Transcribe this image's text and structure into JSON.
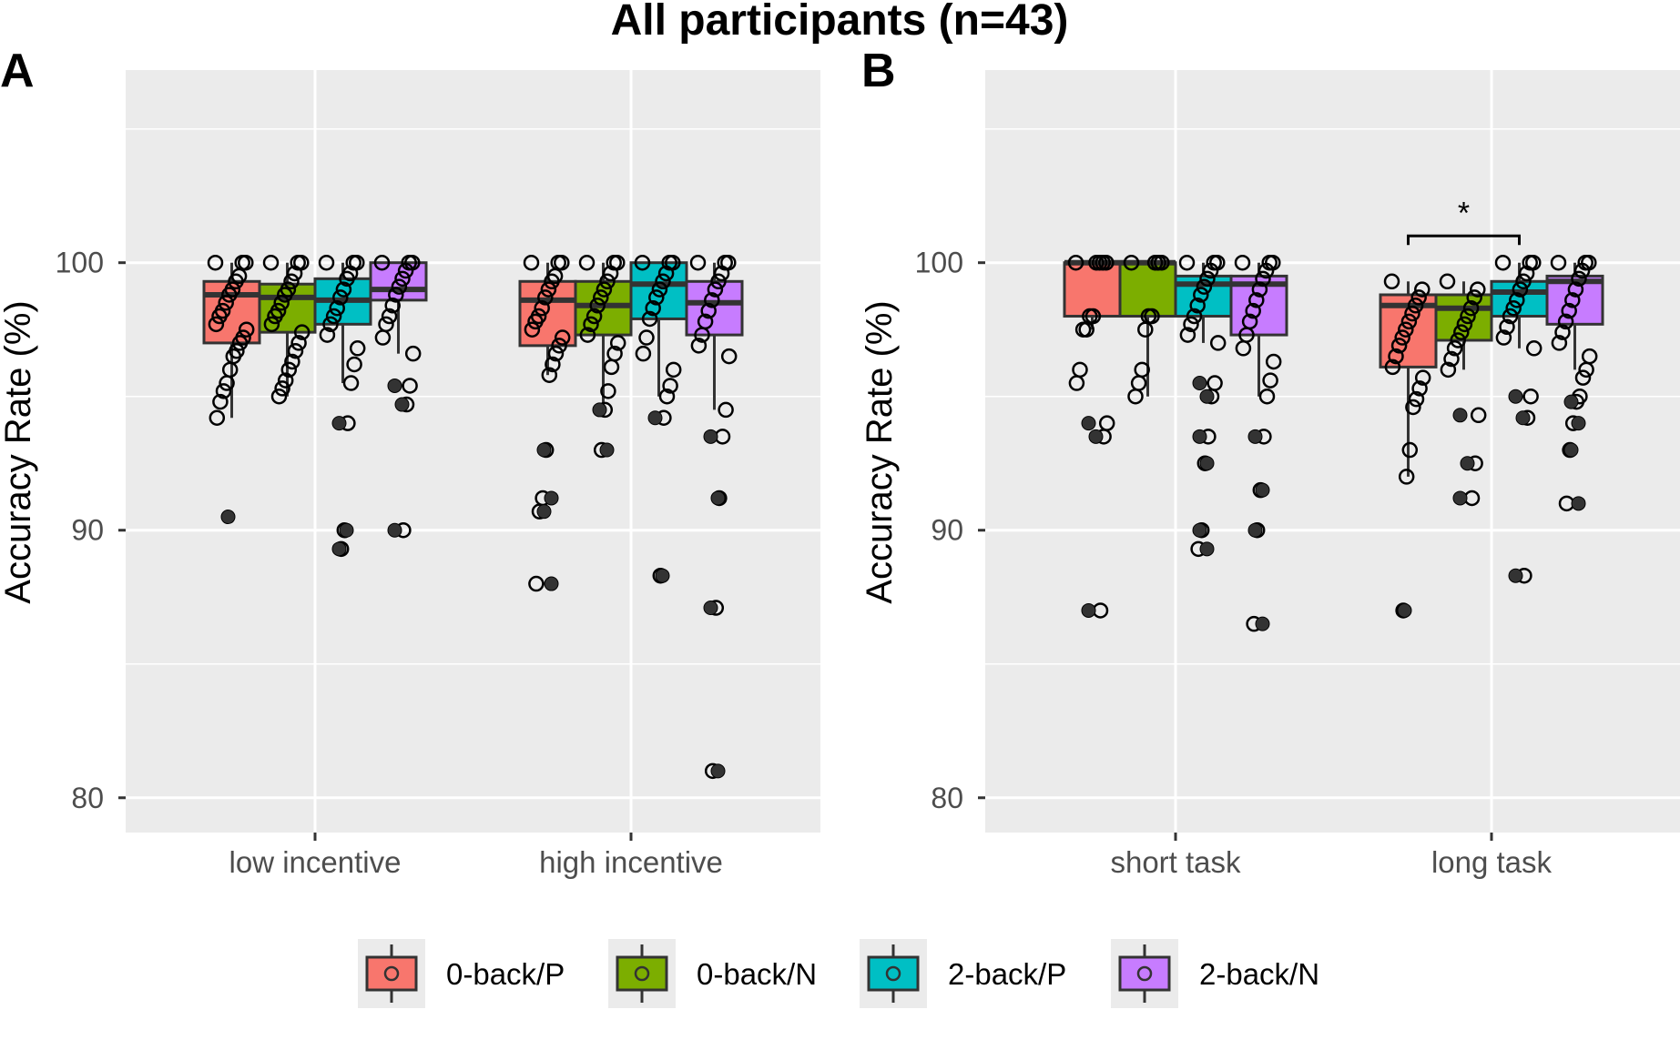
{
  "title": "All participants (n=43)",
  "colors": {
    "0-back/P": "#F8766D",
    "0-back/N": "#7CAE00",
    "2-back/P": "#00BFC4",
    "2-back/N": "#C77CFF",
    "panel_bg": "#EBEBEB",
    "grid": "#FFFFFF"
  },
  "legend": {
    "items": [
      "0-back/P",
      "0-back/N",
      "2-back/P",
      "2-back/N"
    ]
  },
  "chart_data": [
    {
      "type": "box",
      "panel": "A",
      "title": "",
      "xlabel": "",
      "ylabel": "Accuracy Rate (%)",
      "ylim": [
        78.7,
        107.2
      ],
      "y_ticks": [
        80,
        90,
        100
      ],
      "categories": [
        "low incentive",
        "high incentive"
      ],
      "series": [
        {
          "name": "0-back/P",
          "boxes": [
            {
              "q1": 97.0,
              "median": 98.8,
              "q3": 99.3,
              "lower": 94.2,
              "upper": 100,
              "filled": [
                90.5
              ],
              "points": [
                100,
                100,
                100,
                99.5,
                99.3,
                99.0,
                98.8,
                98.5,
                98.2,
                98.0,
                97.7,
                97.5,
                97.2,
                97.0,
                96.7,
                96.5,
                96.0,
                95.5,
                95.2,
                94.8,
                94.2
              ]
            },
            {
              "q1": 96.9,
              "median": 98.6,
              "q3": 99.3,
              "lower": 95.8,
              "upper": 100,
              "filled": [
                93.0,
                91.2,
                90.7,
                88.0
              ],
              "points": [
                100,
                100,
                100,
                99.5,
                99.3,
                99.0,
                98.7,
                98.3,
                98.0,
                97.8,
                97.5,
                97.2,
                96.9,
                96.6,
                96.2,
                95.8,
                93.0,
                91.2,
                90.7,
                88.0
              ]
            }
          ]
        },
        {
          "name": "0-back/N",
          "boxes": [
            {
              "q1": 97.4,
              "median": 98.7,
              "q3": 99.2,
              "lower": 95.0,
              "upper": 100,
              "filled": [],
              "points": [
                100,
                100,
                100,
                99.6,
                99.3,
                99.0,
                98.8,
                98.5,
                98.2,
                98.0,
                97.7,
                97.4,
                97.0,
                96.7,
                96.3,
                96.0,
                95.6,
                95.3,
                95.0
              ]
            },
            {
              "q1": 97.3,
              "median": 98.4,
              "q3": 99.3,
              "lower": 94.5,
              "upper": 100,
              "filled": [
                94.5,
                93.0
              ],
              "points": [
                100,
                100,
                100,
                99.6,
                99.3,
                99.0,
                98.7,
                98.4,
                98.0,
                97.7,
                97.3,
                97.0,
                96.6,
                96.1,
                95.2,
                94.5,
                93.0
              ]
            }
          ]
        },
        {
          "name": "2-back/P",
          "boxes": [
            {
              "q1": 97.7,
              "median": 98.6,
              "q3": 99.4,
              "lower": 95.5,
              "upper": 100,
              "filled": [
                94.0,
                90.0,
                89.3
              ],
              "points": [
                100,
                100,
                100,
                99.6,
                99.4,
                99.0,
                98.7,
                98.3,
                98.0,
                97.7,
                97.3,
                96.8,
                96.2,
                95.5,
                94.0,
                90.0,
                89.3
              ]
            },
            {
              "q1": 97.9,
              "median": 99.2,
              "q3": 100,
              "lower": 95.0,
              "upper": 100,
              "filled": [
                94.2,
                88.3
              ],
              "points": [
                100,
                100,
                100,
                99.6,
                99.3,
                99.0,
                98.7,
                98.3,
                97.9,
                97.2,
                96.6,
                96.0,
                95.4,
                95.0,
                94.2,
                88.3
              ]
            }
          ]
        },
        {
          "name": "2-back/N",
          "boxes": [
            {
              "q1": 98.6,
              "median": 99.0,
              "q3": 100,
              "lower": 96.6,
              "upper": 100,
              "filled": [
                95.4,
                94.7,
                90.0
              ],
              "points": [
                100,
                100,
                100,
                99.7,
                99.4,
                99.1,
                98.8,
                98.4,
                98.0,
                97.7,
                97.2,
                96.6,
                95.4,
                94.7,
                90.0
              ]
            },
            {
              "q1": 97.3,
              "median": 98.5,
              "q3": 99.3,
              "lower": 94.5,
              "upper": 100,
              "filled": [
                93.5,
                91.2,
                87.1,
                81.0
              ],
              "points": [
                100,
                100,
                100,
                99.6,
                99.3,
                99.0,
                98.6,
                98.2,
                97.8,
                97.3,
                96.9,
                96.5,
                94.5,
                93.5,
                91.2,
                87.1,
                81.0
              ]
            }
          ]
        }
      ],
      "annotations": []
    },
    {
      "type": "box",
      "panel": "B",
      "title": "",
      "xlabel": "",
      "ylabel": "Accuracy Rate (%)",
      "ylim": [
        78.7,
        107.2
      ],
      "y_ticks": [
        80,
        90,
        100
      ],
      "categories": [
        "short task",
        "long task"
      ],
      "series": [
        {
          "name": "0-back/P",
          "boxes": [
            {
              "q1": 98.0,
              "median": 100,
              "q3": 100,
              "lower": 97.5,
              "upper": 100,
              "filled": [
                94.0,
                93.5,
                87.0
              ],
              "points": [
                100,
                100,
                100,
                100,
                100,
                98.0,
                98.0,
                97.5,
                97.5,
                96.0,
                95.5,
                94.0,
                93.5,
                87.0
              ]
            },
            {
              "q1": 96.1,
              "median": 98.4,
              "q3": 98.8,
              "lower": 92.0,
              "upper": 99.3,
              "filled": [
                87.0
              ],
              "points": [
                99.3,
                99.0,
                98.7,
                98.4,
                98.1,
                97.8,
                97.5,
                97.2,
                96.9,
                96.5,
                96.1,
                95.7,
                95.3,
                94.9,
                94.6,
                93.0,
                92.0,
                87.0
              ]
            }
          ]
        },
        {
          "name": "0-back/N",
          "boxes": [
            {
              "q1": 98.0,
              "median": 100,
              "q3": 100,
              "lower": 95.0,
              "upper": 100,
              "filled": [],
              "points": [
                100,
                100,
                100,
                100,
                98.0,
                98.0,
                97.5,
                96.0,
                95.5,
                95.0
              ]
            },
            {
              "q1": 97.1,
              "median": 98.3,
              "q3": 98.8,
              "lower": 96.0,
              "upper": 99.3,
              "filled": [
                94.3,
                92.5,
                91.2
              ],
              "points": [
                99.3,
                99.0,
                98.7,
                98.3,
                98.0,
                97.7,
                97.4,
                97.1,
                96.8,
                96.4,
                96.0,
                94.3,
                92.5,
                91.2
              ]
            }
          ]
        },
        {
          "name": "2-back/P",
          "boxes": [
            {
              "q1": 98.0,
              "median": 99.2,
              "q3": 99.5,
              "lower": 97.0,
              "upper": 100,
              "filled": [
                95.5,
                95.0,
                93.5,
                92.5,
                90.0,
                89.3
              ],
              "points": [
                100,
                100,
                100,
                99.7,
                99.4,
                99.1,
                98.8,
                98.4,
                98.0,
                97.7,
                97.3,
                97.0,
                95.5,
                95.0,
                93.5,
                92.5,
                90.0,
                89.3
              ]
            },
            {
              "q1": 98.0,
              "median": 98.9,
              "q3": 99.3,
              "lower": 96.8,
              "upper": 100,
              "filled": [
                95.0,
                94.2,
                88.3
              ],
              "points": [
                100,
                100,
                100,
                99.6,
                99.3,
                99.0,
                98.6,
                98.3,
                98.0,
                97.6,
                97.2,
                96.8,
                95.0,
                94.2,
                88.3
              ]
            }
          ]
        },
        {
          "name": "2-back/N",
          "boxes": [
            {
              "q1": 97.3,
              "median": 99.2,
              "q3": 99.5,
              "lower": 95.0,
              "upper": 100,
              "filled": [
                93.5,
                91.5,
                90.0,
                86.5
              ],
              "points": [
                100,
                100,
                100,
                99.7,
                99.4,
                99.0,
                98.6,
                98.2,
                97.8,
                97.3,
                96.8,
                96.3,
                95.6,
                95.0,
                93.5,
                91.5,
                90.0,
                86.5
              ]
            },
            {
              "q1": 97.7,
              "median": 99.3,
              "q3": 99.5,
              "lower": 96.0,
              "upper": 100,
              "filled": [
                94.8,
                94.0,
                93.0,
                91.0
              ],
              "points": [
                100,
                100,
                100,
                99.7,
                99.4,
                99.0,
                98.6,
                98.2,
                97.8,
                97.4,
                97.0,
                96.5,
                96.0,
                95.7,
                95.0,
                94.8,
                94.0,
                93.0,
                91.0
              ]
            }
          ]
        }
      ],
      "annotations": [
        {
          "type": "significance",
          "category": "long task",
          "from": "0-back/P",
          "to": "2-back/P",
          "label": "*",
          "y": 101.0
        }
      ]
    }
  ]
}
